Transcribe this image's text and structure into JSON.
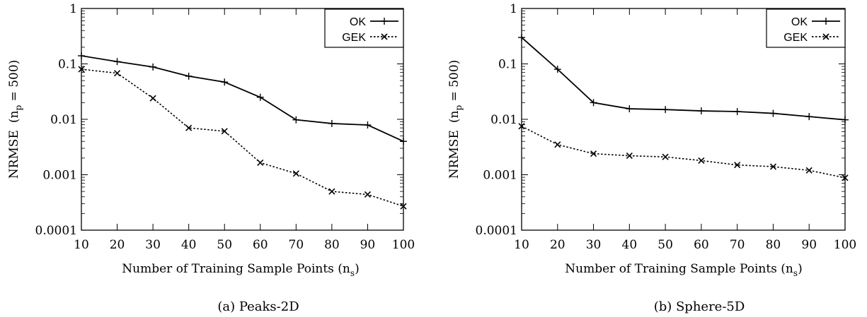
{
  "chart_data": [
    {
      "type": "line",
      "caption": "(a) Peaks-2D",
      "xlabel": "Number of Training Sample Points (n",
      "xlabel_sub": "s",
      "xlabel_end": ")",
      "ylabel": "NRMSE",
      "ylabel_note": "(n",
      "ylabel_note_sub": "p",
      "ylabel_note_end": " = 500)",
      "yscale": "log",
      "ylim": [
        0.0001,
        1
      ],
      "yticks": [
        "0.0001",
        "0.001",
        "0.01",
        "0.1",
        "1"
      ],
      "xlim": [
        10,
        100
      ],
      "x": [
        10,
        20,
        30,
        40,
        50,
        60,
        70,
        80,
        90,
        100
      ],
      "xticks": [
        "10",
        "20",
        "30",
        "40",
        "50",
        "60",
        "70",
        "80",
        "90",
        "100"
      ],
      "legend_position": "top-right",
      "series": [
        {
          "name": "OK",
          "style": "solid",
          "marker": "plus",
          "values": [
            0.14,
            0.11,
            0.088,
            0.06,
            0.047,
            0.025,
            0.0098,
            0.0084,
            0.0079,
            0.004
          ]
        },
        {
          "name": "GEK",
          "style": "dotted",
          "marker": "cross",
          "values": [
            0.08,
            0.068,
            0.024,
            0.007,
            0.0061,
            0.00165,
            0.00105,
            0.0005,
            0.00044,
            0.00027
          ]
        }
      ]
    },
    {
      "type": "line",
      "caption": "(b) Sphere-5D",
      "xlabel": "Number of Training Sample Points (n",
      "xlabel_sub": "s",
      "xlabel_end": ")",
      "ylabel": "NRMSE",
      "ylabel_note": "(n",
      "ylabel_note_sub": "p",
      "ylabel_note_end": " = 500)",
      "yscale": "log",
      "ylim": [
        0.0001,
        1
      ],
      "yticks": [
        "0.0001",
        "0.001",
        "0.01",
        "0.1",
        "1"
      ],
      "xlim": [
        10,
        100
      ],
      "x": [
        10,
        20,
        30,
        40,
        50,
        60,
        70,
        80,
        90,
        100
      ],
      "xticks": [
        "10",
        "20",
        "30",
        "40",
        "50",
        "60",
        "70",
        "80",
        "90",
        "100"
      ],
      "legend_position": "top-right",
      "series": [
        {
          "name": "OK",
          "style": "solid",
          "marker": "plus",
          "values": [
            0.3,
            0.08,
            0.02,
            0.0155,
            0.015,
            0.0142,
            0.0138,
            0.0128,
            0.0112,
            0.0098
          ]
        },
        {
          "name": "GEK",
          "style": "dotted",
          "marker": "cross",
          "values": [
            0.0075,
            0.0035,
            0.0024,
            0.0022,
            0.0021,
            0.0018,
            0.0015,
            0.0014,
            0.0012,
            0.00088
          ]
        }
      ]
    }
  ]
}
